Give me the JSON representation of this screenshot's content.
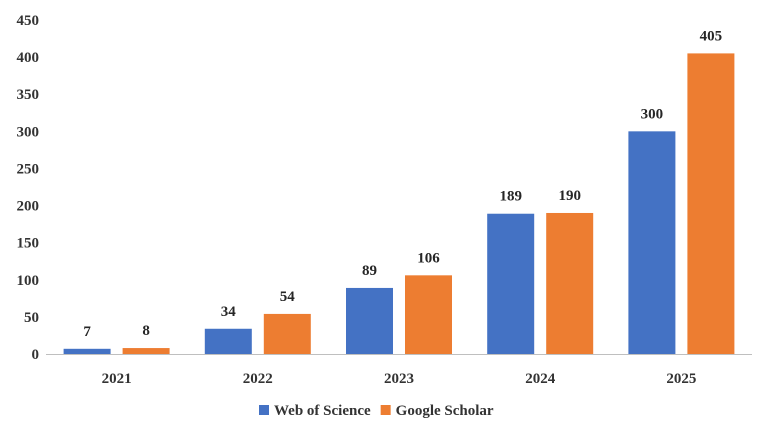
{
  "chart_data": {
    "type": "bar",
    "title": "",
    "xlabel": "",
    "ylabel": "",
    "categories": [
      "2021",
      "2022",
      "2023",
      "2024",
      "2025"
    ],
    "series": [
      {
        "name": "Web of Science",
        "color": "#4472C4",
        "values": [
          7,
          34,
          89,
          189,
          300
        ]
      },
      {
        "name": "Google Scholar",
        "color": "#ED7D31",
        "values": [
          8,
          54,
          106,
          190,
          405
        ]
      }
    ],
    "ylim": [
      0,
      450
    ],
    "yticks": [
      0,
      50,
      100,
      150,
      200,
      250,
      300,
      350,
      400,
      450
    ],
    "grid": false,
    "legend": "bottom-center"
  }
}
